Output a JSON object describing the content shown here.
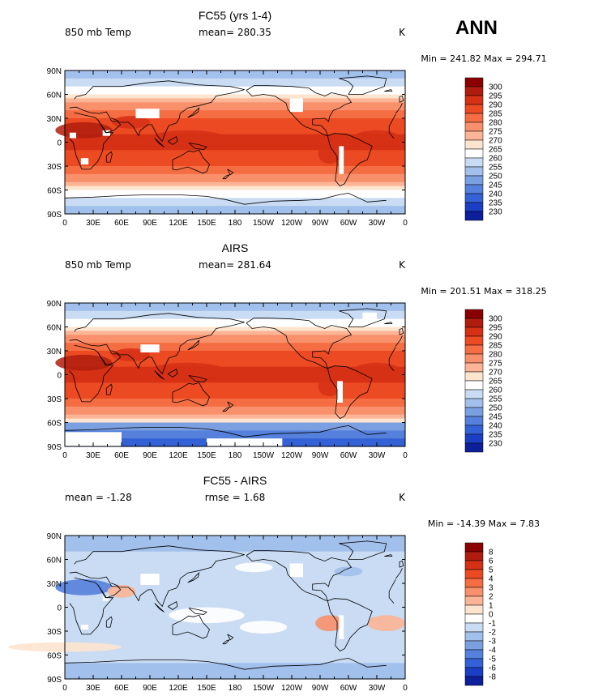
{
  "season_label": "ANN",
  "panels": [
    {
      "title": "FC55 (yrs 1-4)",
      "left_label": "850 mb Temp",
      "center_label": "mean= 280.35",
      "units": "K",
      "minmax": "Min = 241.82 Max = 294.71",
      "colorbar": {
        "labels": [
          "300",
          "295",
          "290",
          "285",
          "280",
          "275",
          "270",
          "265",
          "260",
          "255",
          "250",
          "245",
          "240",
          "235",
          "230"
        ],
        "colors": [
          "#8b0000",
          "#b01d0e",
          "#d63015",
          "#ec4a22",
          "#f46d43",
          "#f8906b",
          "#fbb596",
          "#fde4cf",
          "#ffffff",
          "#c9dcf3",
          "#a2c0ec",
          "#7ba0e2",
          "#5581dc",
          "#3462d6",
          "#1a3fc4",
          "#0d1f9a"
        ]
      },
      "y_ticks": [
        "90N",
        "60N",
        "30N",
        "0",
        "30S",
        "60S",
        "90S"
      ],
      "x_ticks": [
        "0",
        "30E",
        "60E",
        "90E",
        "120E",
        "150E",
        "180",
        "150W",
        "120W",
        "90W",
        "60W",
        "30W",
        "0"
      ],
      "mode": "abs_model"
    },
    {
      "title": "AIRS",
      "left_label": "850 mb Temp",
      "center_label": "mean= 281.64",
      "units": "K",
      "minmax": "Min = 201.51 Max = 318.25",
      "colorbar": {
        "labels": [
          "300",
          "295",
          "290",
          "285",
          "280",
          "275",
          "270",
          "265",
          "260",
          "255",
          "250",
          "245",
          "240",
          "235",
          "230"
        ],
        "colors": [
          "#8b0000",
          "#b01d0e",
          "#d63015",
          "#ec4a22",
          "#f46d43",
          "#f8906b",
          "#fbb596",
          "#fde4cf",
          "#ffffff",
          "#c9dcf3",
          "#a2c0ec",
          "#7ba0e2",
          "#5581dc",
          "#3462d6",
          "#1a3fc4",
          "#0d1f9a"
        ]
      },
      "y_ticks": [
        "90N",
        "60N",
        "30N",
        "0",
        "30S",
        "60S",
        "90S"
      ],
      "x_ticks": [
        "0",
        "30E",
        "60E",
        "90E",
        "120E",
        "150E",
        "180",
        "150W",
        "120W",
        "90W",
        "60W",
        "30W",
        "0"
      ],
      "mode": "abs_obs"
    },
    {
      "title": "FC55 - AIRS",
      "left_label": "mean =   -1.28",
      "center_label": "rmse =    1.68",
      "units": "K",
      "minmax": "Min = -14.39 Max =   7.83",
      "colorbar": {
        "labels": [
          "8",
          "6",
          "5",
          "4",
          "3",
          "2",
          "1",
          "0",
          "-1",
          "-2",
          "-3",
          "-4",
          "-5",
          "-6",
          "-8"
        ],
        "colors": [
          "#8b0000",
          "#b01d0e",
          "#d63015",
          "#ec4a22",
          "#f46d43",
          "#f8906b",
          "#fbb596",
          "#fde4cf",
          "#ffffff",
          "#c9dcf3",
          "#a2c0ec",
          "#7ba0e2",
          "#5581dc",
          "#3462d6",
          "#1a3fc4",
          "#0d1f9a"
        ]
      },
      "y_ticks": [
        "90N",
        "60N",
        "30N",
        "0",
        "30S",
        "60S",
        "90S"
      ],
      "x_ticks": [
        "0",
        "30E",
        "60E",
        "90E",
        "120E",
        "150E",
        "180",
        "150W",
        "120W",
        "90W",
        "60W",
        "30W",
        "0"
      ],
      "mode": "diff"
    }
  ]
}
